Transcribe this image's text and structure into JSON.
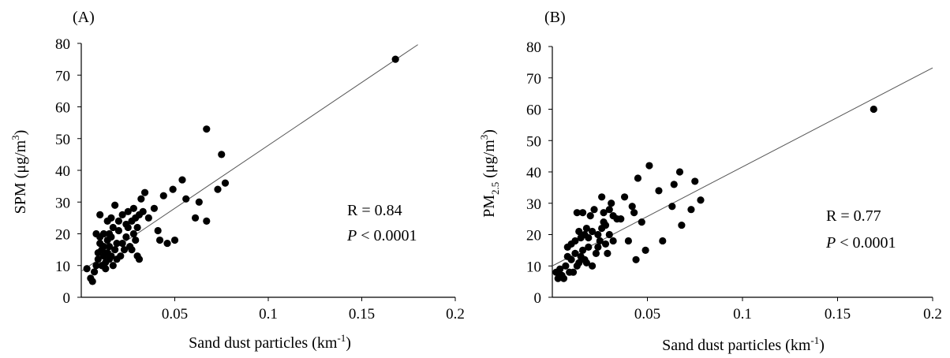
{
  "chart_data": [
    {
      "type": "scatter",
      "panel_label": "(A)",
      "ylabel_main": "SPM (",
      "ylabel_unit": "μg/m",
      "ylabel_sup": "3",
      "ylabel_close": ")",
      "xlabel_main": "Sand dust particles  (km",
      "xlabel_sup": "-1",
      "xlabel_close": ")",
      "xlim": [
        0,
        0.2
      ],
      "ylim": [
        0,
        80
      ],
      "x_ticks": [
        0.05,
        0.1,
        0.15,
        0.2
      ],
      "x_tick_labels": [
        "0.05",
        "0.1",
        "0.15",
        "0.2"
      ],
      "y_ticks": [
        0,
        10,
        20,
        30,
        40,
        50,
        60,
        70,
        80
      ],
      "y_tick_labels": [
        "0",
        "10",
        "20",
        "30",
        "40",
        "50",
        "60",
        "70",
        "80"
      ],
      "grid": false,
      "fit_line": {
        "x": [
          0,
          0.18
        ],
        "y": [
          8.2,
          79.6
        ]
      },
      "stats": {
        "r_text": "R = 0.84",
        "p_label": "P",
        "p_text": " < 0.0001"
      },
      "points": {
        "x": [
          0.003,
          0.005,
          0.006,
          0.007,
          0.008,
          0.008,
          0.009,
          0.009,
          0.01,
          0.01,
          0.01,
          0.011,
          0.011,
          0.012,
          0.012,
          0.012,
          0.013,
          0.013,
          0.014,
          0.014,
          0.014,
          0.015,
          0.015,
          0.015,
          0.016,
          0.016,
          0.016,
          0.017,
          0.017,
          0.018,
          0.018,
          0.019,
          0.019,
          0.02,
          0.02,
          0.021,
          0.022,
          0.022,
          0.023,
          0.024,
          0.024,
          0.025,
          0.025,
          0.026,
          0.027,
          0.027,
          0.028,
          0.028,
          0.029,
          0.029,
          0.03,
          0.03,
          0.031,
          0.031,
          0.032,
          0.033,
          0.034,
          0.036,
          0.039,
          0.041,
          0.042,
          0.044,
          0.046,
          0.049,
          0.05,
          0.054,
          0.056,
          0.061,
          0.063,
          0.067,
          0.067,
          0.073,
          0.075,
          0.077,
          0.168
        ],
        "y": [
          9,
          6,
          5,
          8,
          10,
          20,
          12,
          14,
          26,
          17,
          19,
          10,
          15,
          20,
          13,
          16,
          9,
          11,
          24,
          18,
          14,
          12,
          16,
          20,
          25,
          13,
          19,
          10,
          22,
          29,
          15,
          12,
          17,
          24,
          21,
          13,
          26,
          17,
          15,
          19,
          23,
          27,
          22,
          16,
          24,
          15,
          20,
          28,
          18,
          25,
          13,
          22,
          26,
          12,
          31,
          27,
          33,
          25,
          28,
          21,
          18,
          32,
          17,
          34,
          18,
          37,
          31,
          25,
          30,
          53,
          24,
          34,
          45,
          36,
          75
        ]
      }
    },
    {
      "type": "scatter",
      "panel_label": "(B)",
      "ylabel_main": "PM",
      "ylabel_sub": "2.5",
      "ylabel_unit": " (μg/m",
      "ylabel_sup": "3",
      "ylabel_close": ")",
      "xlabel_main": "Sand dust particles  (km",
      "xlabel_sup": "-1",
      "xlabel_close": ")",
      "xlim": [
        0,
        0.2
      ],
      "ylim": [
        0,
        80
      ],
      "x_ticks": [
        0.05,
        0.1,
        0.15,
        0.2
      ],
      "x_tick_labels": [
        "0.05",
        "0.1",
        "0.15",
        "0.2"
      ],
      "y_ticks": [
        0,
        10,
        20,
        30,
        40,
        50,
        60,
        70,
        80
      ],
      "y_tick_labels": [
        "0",
        "10",
        "20",
        "30",
        "40",
        "50",
        "60",
        "70",
        "80"
      ],
      "grid": false,
      "fit_line": {
        "x": [
          0,
          0.2
        ],
        "y": [
          10,
          73.2
        ]
      },
      "stats": {
        "r_text": "R = 0.77",
        "p_label": "P",
        "p_text": " < 0.0001"
      },
      "points": {
        "x": [
          0.002,
          0.003,
          0.004,
          0.005,
          0.006,
          0.007,
          0.008,
          0.008,
          0.009,
          0.01,
          0.01,
          0.011,
          0.012,
          0.012,
          0.013,
          0.013,
          0.014,
          0.014,
          0.015,
          0.015,
          0.016,
          0.016,
          0.017,
          0.017,
          0.018,
          0.018,
          0.019,
          0.019,
          0.02,
          0.021,
          0.021,
          0.022,
          0.023,
          0.024,
          0.024,
          0.025,
          0.026,
          0.026,
          0.027,
          0.027,
          0.028,
          0.028,
          0.029,
          0.03,
          0.03,
          0.031,
          0.032,
          0.032,
          0.034,
          0.036,
          0.038,
          0.04,
          0.042,
          0.043,
          0.044,
          0.045,
          0.047,
          0.049,
          0.051,
          0.056,
          0.058,
          0.063,
          0.064,
          0.067,
          0.068,
          0.073,
          0.075,
          0.078,
          0.169
        ],
        "y": [
          8,
          6,
          9,
          7,
          6,
          10,
          13,
          16,
          8,
          12,
          17,
          8,
          14,
          18,
          27,
          10,
          11,
          21,
          13,
          19,
          15,
          27,
          12,
          20,
          22,
          11,
          16,
          19,
          26,
          10,
          21,
          28,
          14,
          16,
          20,
          18,
          32,
          22,
          24,
          27,
          17,
          23,
          14,
          28,
          20,
          30,
          26,
          18,
          25,
          25,
          32,
          18,
          29,
          27,
          12,
          38,
          24,
          15,
          42,
          34,
          18,
          29,
          36,
          40,
          23,
          28,
          37,
          31,
          60
        ]
      }
    }
  ]
}
